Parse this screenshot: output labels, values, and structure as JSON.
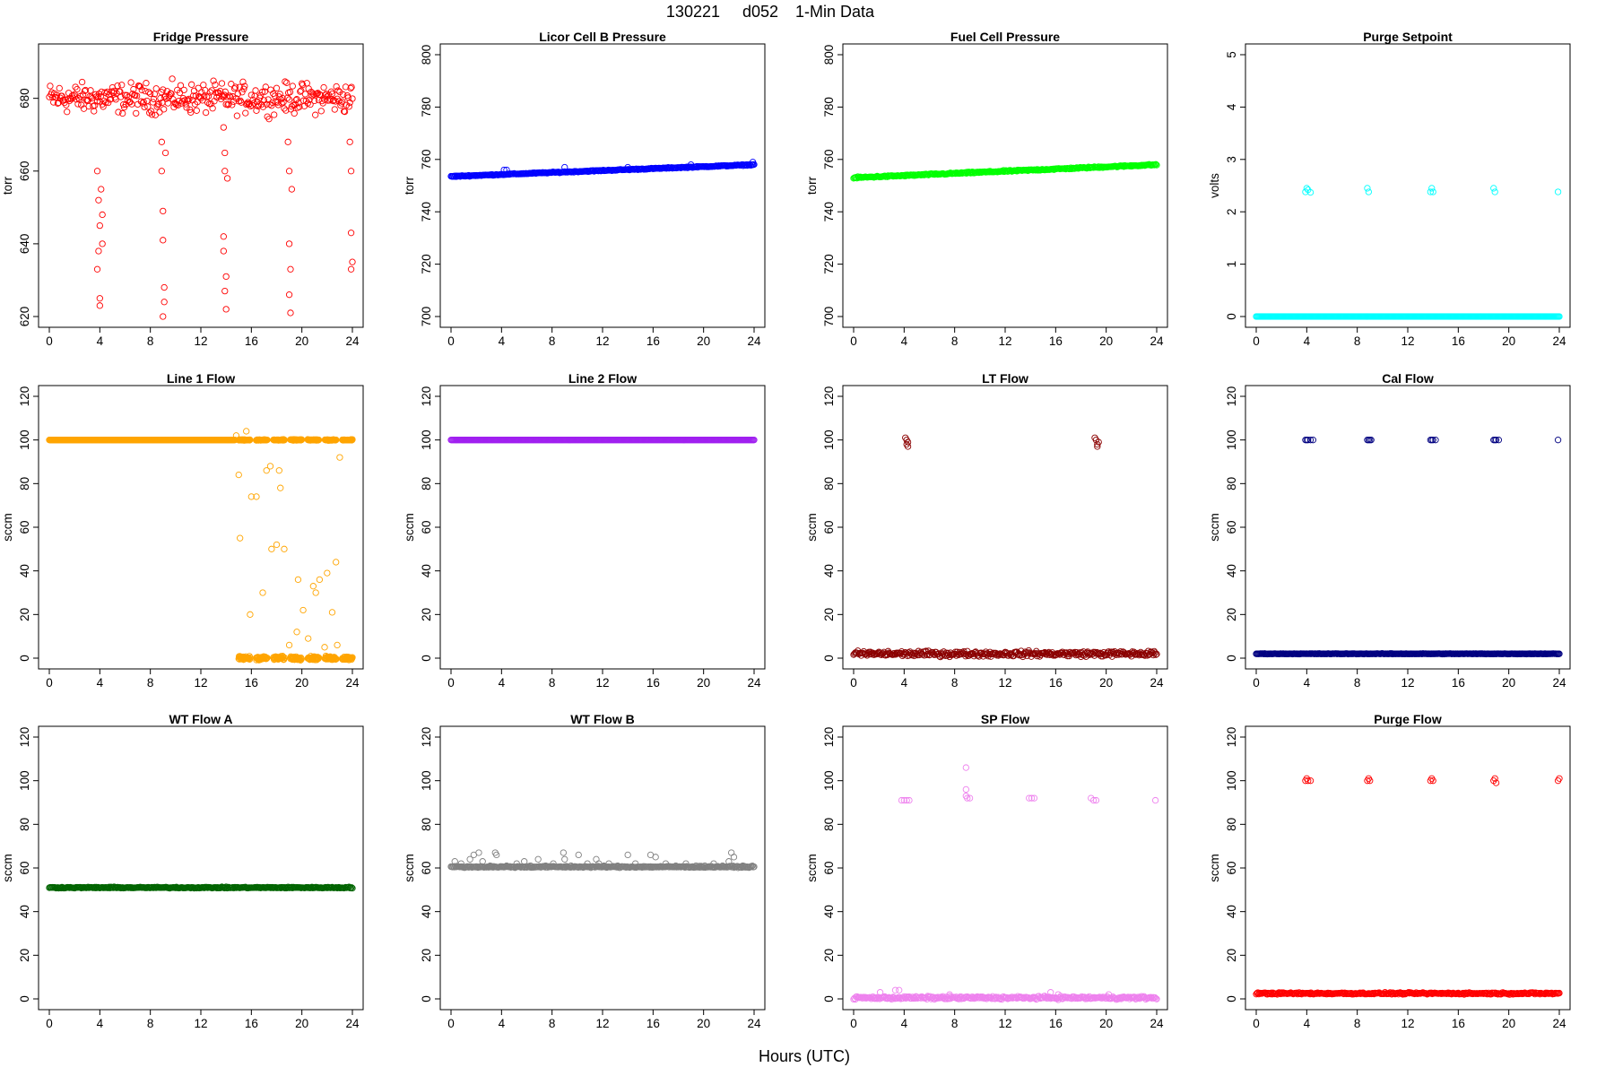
{
  "figure": {
    "title_date": "130221",
    "title_day": "d052",
    "title_desc": "1-Min Data",
    "xlabel": "Hours (UTC)"
  },
  "chart_data": [
    {
      "type": "scatter",
      "title": "Fridge Pressure",
      "ylabel": "torr",
      "color": "#FF0000",
      "xlim": [
        0,
        24
      ],
      "xticks": [
        0,
        4,
        8,
        12,
        16,
        20,
        24
      ],
      "ylim": [
        620,
        692
      ],
      "yticks": [
        620,
        640,
        660,
        680
      ],
      "summary": "Noisy band 670-690 torr with dips to 620-660 near hours 4, 9, 14, 19, 24",
      "segments": [
        {
          "x0": 0,
          "x1": 24,
          "y": 680,
          "jitter": 6
        }
      ],
      "points": [
        [
          3.8,
          660
        ],
        [
          3.9,
          652
        ],
        [
          4.0,
          645
        ],
        [
          3.9,
          638
        ],
        [
          3.8,
          633
        ],
        [
          4.0,
          625
        ],
        [
          4.0,
          623
        ],
        [
          4.1,
          655
        ],
        [
          4.2,
          640
        ],
        [
          4.2,
          648
        ],
        [
          8.9,
          668
        ],
        [
          8.9,
          660
        ],
        [
          9.0,
          649
        ],
        [
          9.0,
          641
        ],
        [
          9.1,
          628
        ],
        [
          9.1,
          624
        ],
        [
          9.0,
          620
        ],
        [
          9.2,
          665
        ],
        [
          13.8,
          672
        ],
        [
          13.9,
          665
        ],
        [
          13.9,
          660
        ],
        [
          13.8,
          642
        ],
        [
          13.8,
          638
        ],
        [
          14.0,
          631
        ],
        [
          13.9,
          627
        ],
        [
          14.0,
          622
        ],
        [
          14.1,
          658
        ],
        [
          18.9,
          668
        ],
        [
          19.0,
          660
        ],
        [
          19.0,
          640
        ],
        [
          19.1,
          633
        ],
        [
          19.0,
          626
        ],
        [
          19.1,
          621
        ],
        [
          19.2,
          655
        ],
        [
          23.8,
          668
        ],
        [
          23.9,
          660
        ],
        [
          23.9,
          643
        ],
        [
          24.0,
          635
        ],
        [
          23.9,
          633
        ]
      ]
    },
    {
      "type": "scatter",
      "title": "Licor Cell B Pressure",
      "ylabel": "torr",
      "color": "#0000FF",
      "xlim": [
        0,
        24
      ],
      "xticks": [
        0,
        4,
        8,
        12,
        16,
        20,
        24
      ],
      "ylim": [
        700,
        800
      ],
      "yticks": [
        700,
        720,
        740,
        760,
        780,
        800
      ],
      "summary": "Slow rise from 753 to 758 torr",
      "segments": [
        {
          "x0": 0,
          "x1": 24,
          "y0": 753.5,
          "y1": 758,
          "jitter": 0.3
        }
      ],
      "points": [
        [
          4.2,
          756
        ],
        [
          4.4,
          756
        ],
        [
          9.0,
          757
        ],
        [
          14.0,
          757
        ],
        [
          19.0,
          758
        ],
        [
          23.9,
          759
        ]
      ]
    },
    {
      "type": "scatter",
      "title": "Fuel Cell Pressure",
      "ylabel": "torr",
      "color": "#00FF00",
      "xlim": [
        0,
        24
      ],
      "xticks": [
        0,
        4,
        8,
        12,
        16,
        20,
        24
      ],
      "ylim": [
        700,
        800
      ],
      "yticks": [
        700,
        720,
        740,
        760,
        780,
        800
      ],
      "summary": "Slow rise from 753 to 758 torr",
      "segments": [
        {
          "x0": 0,
          "x1": 24,
          "y0": 753,
          "y1": 758,
          "jitter": 0.4
        }
      ],
      "points": []
    },
    {
      "type": "scatter",
      "title": "Purge Setpoint",
      "ylabel": "volts",
      "color": "#00FFFF",
      "xlim": [
        0,
        24
      ],
      "xticks": [
        0,
        4,
        8,
        12,
        16,
        20,
        24
      ],
      "ylim": [
        0,
        5
      ],
      "yticks": [
        0,
        1,
        2,
        3,
        4,
        5
      ],
      "summary": "Zero baseline with 2.4 V setpoints near hours 4, 9, 14, 19, 24",
      "segments": [
        {
          "x0": 0,
          "x1": 24,
          "y": 0,
          "jitter": 0
        }
      ],
      "points": [
        [
          3.9,
          2.38
        ],
        [
          4.0,
          2.45
        ],
        [
          4.1,
          2.42
        ],
        [
          4.3,
          2.37
        ],
        [
          8.8,
          2.45
        ],
        [
          8.9,
          2.38
        ],
        [
          13.8,
          2.38
        ],
        [
          13.9,
          2.45
        ],
        [
          14.0,
          2.38
        ],
        [
          18.8,
          2.45
        ],
        [
          18.9,
          2.38
        ],
        [
          23.9,
          2.38
        ]
      ]
    },
    {
      "type": "scatter",
      "title": "Line 1 Flow",
      "ylabel": "sccm",
      "color": "#FFA500",
      "xlim": [
        0,
        24
      ],
      "xticks": [
        0,
        4,
        8,
        12,
        16,
        20,
        24
      ],
      "ylim": [
        0,
        120
      ],
      "yticks": [
        0,
        20,
        40,
        60,
        80,
        100,
        120
      ],
      "summary": "Steady 100 sccm until ~15 h, then alternates between 100 and 0 sccm",
      "segments": [
        {
          "x0": 0,
          "x1": 14.7,
          "y": 100,
          "jitter": 0
        },
        {
          "x0": 14.7,
          "x1": 24,
          "y": 100,
          "jitter": 0.3,
          "gappy": true
        },
        {
          "x0": 15.0,
          "x1": 24,
          "y": 0,
          "jitter": 1.2,
          "gappy": true
        }
      ],
      "points": [
        [
          14.8,
          102
        ],
        [
          15.0,
          84
        ],
        [
          15.1,
          55
        ],
        [
          15.6,
          104
        ],
        [
          15.9,
          20
        ],
        [
          16.0,
          74
        ],
        [
          16.4,
          74
        ],
        [
          16.9,
          30
        ],
        [
          17.2,
          86
        ],
        [
          17.5,
          88
        ],
        [
          17.6,
          50
        ],
        [
          18.0,
          52
        ],
        [
          18.2,
          86
        ],
        [
          18.3,
          78
        ],
        [
          18.6,
          50
        ],
        [
          19.0,
          6
        ],
        [
          19.6,
          12
        ],
        [
          19.7,
          36
        ],
        [
          20.1,
          22
        ],
        [
          20.5,
          9
        ],
        [
          20.9,
          33
        ],
        [
          21.1,
          30
        ],
        [
          21.4,
          36
        ],
        [
          22.0,
          39
        ],
        [
          22.4,
          21
        ],
        [
          22.7,
          44
        ],
        [
          23.0,
          92
        ],
        [
          22.8,
          6
        ],
        [
          21.8,
          5
        ]
      ]
    },
    {
      "type": "scatter",
      "title": "Line 2 Flow",
      "ylabel": "sccm",
      "color": "#A020F0",
      "xlim": [
        0,
        24
      ],
      "xticks": [
        0,
        4,
        8,
        12,
        16,
        20,
        24
      ],
      "ylim": [
        0,
        120
      ],
      "yticks": [
        0,
        20,
        40,
        60,
        80,
        100,
        120
      ],
      "summary": "Constant 100 sccm",
      "segments": [
        {
          "x0": 0,
          "x1": 24,
          "y": 100,
          "jitter": 0
        }
      ],
      "points": []
    },
    {
      "type": "scatter",
      "title": "LT Flow",
      "ylabel": "sccm",
      "color": "#8B0000",
      "xlim": [
        0,
        24
      ],
      "xticks": [
        0,
        4,
        8,
        12,
        16,
        20,
        24
      ],
      "ylim": [
        0,
        120
      ],
      "yticks": [
        0,
        20,
        40,
        60,
        80,
        100,
        120
      ],
      "summary": "Near-zero baseline (0-4 sccm) with ~100 sccm at hours 4 and 19",
      "segments": [
        {
          "x0": 0,
          "x1": 24,
          "y": 2,
          "jitter": 1.8
        }
      ],
      "points": [
        [
          4.1,
          101
        ],
        [
          4.2,
          100
        ],
        [
          4.2,
          98
        ],
        [
          4.3,
          99
        ],
        [
          4.3,
          97
        ],
        [
          19.1,
          101
        ],
        [
          19.2,
          100
        ],
        [
          19.3,
          98
        ],
        [
          19.4,
          99
        ],
        [
          19.3,
          97
        ]
      ]
    },
    {
      "type": "scatter",
      "title": "Cal Flow",
      "ylabel": "sccm",
      "color": "#000080",
      "xlim": [
        0,
        24
      ],
      "xticks": [
        0,
        4,
        8,
        12,
        16,
        20,
        24
      ],
      "ylim": [
        0,
        120
      ],
      "yticks": [
        0,
        20,
        40,
        60,
        80,
        100,
        120
      ],
      "summary": "Baseline ~2 sccm with 100 sccm at hours 4, 9, 14, 19, 24",
      "segments": [
        {
          "x0": 0,
          "x1": 24,
          "y": 2,
          "jitter": 0.2
        }
      ],
      "points": [
        [
          3.9,
          100
        ],
        [
          4.0,
          100
        ],
        [
          4.1,
          100
        ],
        [
          4.3,
          100
        ],
        [
          4.5,
          100
        ],
        [
          8.8,
          100
        ],
        [
          8.9,
          100
        ],
        [
          9.0,
          100
        ],
        [
          9.1,
          100
        ],
        [
          13.8,
          100
        ],
        [
          13.9,
          100
        ],
        [
          14.0,
          100
        ],
        [
          14.2,
          100
        ],
        [
          18.8,
          100
        ],
        [
          18.9,
          100
        ],
        [
          19.0,
          100
        ],
        [
          19.2,
          100
        ],
        [
          23.9,
          100
        ]
      ]
    },
    {
      "type": "scatter",
      "title": "WT Flow A",
      "ylabel": "sccm",
      "color": "#006400",
      "xlim": [
        0,
        24
      ],
      "xticks": [
        0,
        4,
        8,
        12,
        16,
        20,
        24
      ],
      "ylim": [
        0,
        120
      ],
      "yticks": [
        0,
        20,
        40,
        60,
        80,
        100,
        120
      ],
      "summary": "Constant ~51 sccm",
      "segments": [
        {
          "x0": 0,
          "x1": 24,
          "y": 51,
          "jitter": 0.4
        }
      ],
      "points": []
    },
    {
      "type": "scatter",
      "title": "WT Flow B",
      "ylabel": "sccm",
      "color": "#808080",
      "xlim": [
        0,
        24
      ],
      "xticks": [
        0,
        4,
        8,
        12,
        16,
        20,
        24
      ],
      "ylim": [
        0,
        120
      ],
      "yticks": [
        0,
        20,
        40,
        60,
        80,
        100,
        120
      ],
      "summary": "Constant ~60 sccm with occasional spikes to 63-68",
      "segments": [
        {
          "x0": 0,
          "x1": 24,
          "y": 60.5,
          "jitter": 0.5
        }
      ],
      "points": [
        [
          0.3,
          63
        ],
        [
          0.8,
          62
        ],
        [
          1.5,
          64
        ],
        [
          1.8,
          66
        ],
        [
          2.2,
          67
        ],
        [
          2.5,
          63
        ],
        [
          3.1,
          61
        ],
        [
          3.5,
          67
        ],
        [
          3.6,
          66
        ],
        [
          4.4,
          61
        ],
        [
          5.2,
          62
        ],
        [
          5.8,
          63
        ],
        [
          6.3,
          61
        ],
        [
          6.9,
          64
        ],
        [
          7.5,
          61
        ],
        [
          8.1,
          62
        ],
        [
          8.9,
          67
        ],
        [
          9.0,
          64
        ],
        [
          9.5,
          61
        ],
        [
          10.1,
          66
        ],
        [
          10.8,
          62
        ],
        [
          11.5,
          64
        ],
        [
          11.7,
          62
        ],
        [
          12.1,
          61
        ],
        [
          12.5,
          62
        ],
        [
          13.2,
          61
        ],
        [
          14.0,
          66
        ],
        [
          14.6,
          62
        ],
        [
          15.8,
          66
        ],
        [
          16.2,
          65
        ],
        [
          17.0,
          62
        ],
        [
          17.8,
          61
        ],
        [
          18.6,
          62
        ],
        [
          19.4,
          61
        ],
        [
          20.1,
          61
        ],
        [
          20.8,
          62
        ],
        [
          21.5,
          61
        ],
        [
          22.0,
          63
        ],
        [
          22.2,
          67
        ],
        [
          22.4,
          65
        ],
        [
          23.1,
          61
        ]
      ]
    },
    {
      "type": "scatter",
      "title": "SP Flow",
      "ylabel": "sccm",
      "color": "#EE82EE",
      "xlim": [
        0,
        24
      ],
      "xticks": [
        0,
        4,
        8,
        12,
        16,
        20,
        24
      ],
      "ylim": [
        0,
        120
      ],
      "yticks": [
        0,
        20,
        40,
        60,
        80,
        100,
        120
      ],
      "summary": "Near-zero baseline with ~92 sccm at hours 4, 9, 14, 19, 24",
      "segments": [
        {
          "x0": 0,
          "x1": 24,
          "y": 0.5,
          "jitter": 1.0
        }
      ],
      "points": [
        [
          3.8,
          91
        ],
        [
          4.0,
          91
        ],
        [
          4.2,
          91
        ],
        [
          4.4,
          91
        ],
        [
          8.9,
          106
        ],
        [
          8.9,
          96
        ],
        [
          8.9,
          93
        ],
        [
          9.0,
          92
        ],
        [
          9.2,
          92
        ],
        [
          13.9,
          92
        ],
        [
          14.1,
          92
        ],
        [
          14.3,
          92
        ],
        [
          18.8,
          92
        ],
        [
          19.0,
          91
        ],
        [
          19.2,
          91
        ],
        [
          23.9,
          91
        ],
        [
          3.3,
          4
        ],
        [
          3.6,
          4
        ],
        [
          2.1,
          3
        ],
        [
          7.6,
          2
        ],
        [
          15.6,
          3
        ],
        [
          16.2,
          2
        ],
        [
          20.2,
          2
        ]
      ]
    },
    {
      "type": "scatter",
      "title": "Purge Flow",
      "ylabel": "sccm",
      "color": "#FF0000",
      "xlim": [
        0,
        24
      ],
      "xticks": [
        0,
        4,
        8,
        12,
        16,
        20,
        24
      ],
      "ylim": [
        0,
        120
      ],
      "yticks": [
        0,
        20,
        40,
        60,
        80,
        100,
        120
      ],
      "summary": "Baseline ~2.5 sccm with ~100 sccm at hours 4, 9, 14, 19, 24",
      "segments": [
        {
          "x0": 0,
          "x1": 24,
          "y": 2.5,
          "jitter": 0.6
        }
      ],
      "points": [
        [
          3.9,
          100
        ],
        [
          4.0,
          101
        ],
        [
          4.1,
          100
        ],
        [
          4.3,
          100
        ],
        [
          8.8,
          100
        ],
        [
          8.9,
          101
        ],
        [
          9.0,
          100
        ],
        [
          13.8,
          100
        ],
        [
          13.9,
          101
        ],
        [
          14.0,
          100
        ],
        [
          18.8,
          100
        ],
        [
          18.9,
          101
        ],
        [
          19.0,
          99
        ],
        [
          23.9,
          100
        ],
        [
          24.0,
          101
        ]
      ]
    }
  ]
}
